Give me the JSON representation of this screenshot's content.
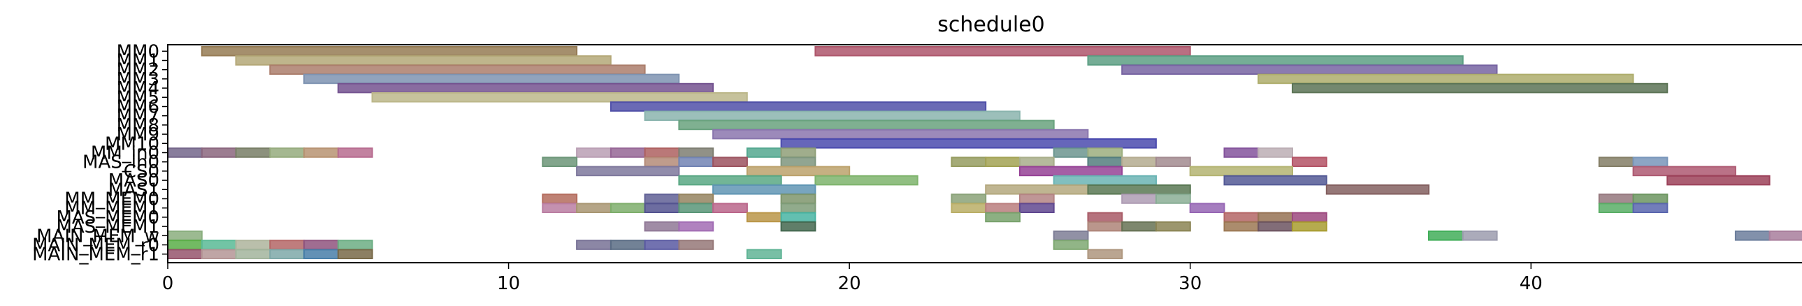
{
  "chart_data": {
    "type": "gantt",
    "title": "schedule0",
    "xlabel": "",
    "ylabel": "",
    "xlim": [
      0,
      48.3
    ],
    "x_ticks": [
      0,
      10,
      20,
      30,
      40
    ],
    "grid": false,
    "legend": "none",
    "rows": [
      "MM0",
      "MM1",
      "MM2",
      "MM3",
      "MM4",
      "MM5",
      "MM6",
      "MM7",
      "MM8",
      "MM9",
      "MM10",
      "MM_in0",
      "MAS_in0",
      "CS0",
      "MAS0",
      "MAS1",
      "MM_MEM0",
      "MM_MEM1",
      "MAS_MEM0",
      "MAS_MEM1",
      "MAIN_MEM_w",
      "MAIN_MEM_r0",
      "MAIN_MEM_r1"
    ],
    "y_labels": [
      "MM0",
      "MM1",
      "MM2",
      "MM3",
      "MM4",
      "MM5",
      "MM6",
      "MM7",
      "MM8",
      "MM9",
      "MM10",
      "MM_in0",
      "MAS_in0",
      "CS0",
      "MAS0",
      "MAS1",
      "MM_MEM0",
      "MM_MEM1",
      "MAS_MEM0",
      "MAS_MEM1",
      "MAIN_MEM_w",
      "MAIN_MEM_r0",
      "MAIN_MEM_r1"
    ],
    "tasks": [
      {
        "row": 0,
        "start": 1,
        "end": 12,
        "color": "#c8a470"
      },
      {
        "row": 0,
        "start": 19,
        "end": 30,
        "color": "#e8738f"
      },
      {
        "row": 1,
        "start": 2,
        "end": 13,
        "color": "#f0e0a0"
      },
      {
        "row": 1,
        "start": 27,
        "end": 38,
        "color": "#7bd4b0"
      },
      {
        "row": 2,
        "start": 3,
        "end": 14,
        "color": "#e4a890"
      },
      {
        "row": 2,
        "start": 28,
        "end": 39,
        "color": "#9f86d8"
      },
      {
        "row": 3,
        "start": 4,
        "end": 15,
        "color": "#a8c4ec"
      },
      {
        "row": 3,
        "start": 32,
        "end": 43,
        "color": "#e8e690"
      },
      {
        "row": 4,
        "start": 5,
        "end": 16,
        "color": "#9b6fc0"
      },
      {
        "row": 4,
        "start": 33,
        "end": 44,
        "color": "#7a9a72"
      },
      {
        "row": 5,
        "start": 6,
        "end": 17,
        "color": "#fbf4b8"
      },
      {
        "row": 6,
        "start": 13,
        "end": 24,
        "color": "#6b6be0"
      },
      {
        "row": 7,
        "start": 14,
        "end": 25,
        "color": "#b8f0e8"
      },
      {
        "row": 8,
        "start": 15,
        "end": 26,
        "color": "#8cd8a8"
      },
      {
        "row": 9,
        "start": 16,
        "end": 27,
        "color": "#b89ee8"
      },
      {
        "row": 10,
        "start": 18,
        "end": 29,
        "color": "#6464e8"
      },
      {
        "row": 11,
        "start": 0,
        "end": 1,
        "color": "#9a88b8"
      },
      {
        "row": 11,
        "start": 1,
        "end": 2,
        "color": "#b888a8"
      },
      {
        "row": 11,
        "start": 2,
        "end": 3,
        "color": "#a0a888"
      },
      {
        "row": 11,
        "start": 3,
        "end": 4,
        "color": "#c8e4a8"
      },
      {
        "row": 11,
        "start": 4,
        "end": 5,
        "color": "#f4c498"
      },
      {
        "row": 11,
        "start": 5,
        "end": 6,
        "color": "#f490c0"
      },
      {
        "row": 11,
        "start": 12,
        "end": 13,
        "color": "#f8d4f0"
      },
      {
        "row": 11,
        "start": 13,
        "end": 14,
        "color": "#c888c8"
      },
      {
        "row": 11,
        "start": 14,
        "end": 15,
        "color": "#e88080"
      },
      {
        "row": 11,
        "start": 15,
        "end": 16,
        "color": "#a8a898"
      },
      {
        "row": 11,
        "start": 17,
        "end": 18,
        "color": "#70e0c0"
      },
      {
        "row": 11,
        "start": 18,
        "end": 19,
        "color": "#c0d4a0"
      },
      {
        "row": 11,
        "start": 26,
        "end": 27,
        "color": "#90c8c0"
      },
      {
        "row": 11,
        "start": 27,
        "end": 28,
        "color": "#d0e8a8"
      },
      {
        "row": 11,
        "start": 31,
        "end": 32,
        "color": "#b070d0"
      },
      {
        "row": 11,
        "start": 32,
        "end": 33,
        "color": "#fbe8f0"
      },
      {
        "row": 12,
        "start": 11,
        "end": 12,
        "color": "#90c8a0"
      },
      {
        "row": 12,
        "start": 14,
        "end": 15,
        "color": "#f0b8a0"
      },
      {
        "row": 12,
        "start": 15,
        "end": 16,
        "color": "#98b0f0"
      },
      {
        "row": 12,
        "start": 16,
        "end": 17,
        "color": "#d07080"
      },
      {
        "row": 12,
        "start": 18,
        "end": 19,
        "color": "#a8c8a8"
      },
      {
        "row": 12,
        "start": 23,
        "end": 24,
        "color": "#c8d080"
      },
      {
        "row": 12,
        "start": 24,
        "end": 25,
        "color": "#d8d870"
      },
      {
        "row": 12,
        "start": 25,
        "end": 26,
        "color": "#e0e8b8"
      },
      {
        "row": 12,
        "start": 27,
        "end": 28,
        "color": "#70a8a8"
      },
      {
        "row": 12,
        "start": 28,
        "end": 29,
        "color": "#f0e4c0"
      },
      {
        "row": 12,
        "start": 29,
        "end": 30,
        "color": "#d8b8c0"
      },
      {
        "row": 12,
        "start": 33,
        "end": 34,
        "color": "#f07088"
      },
      {
        "row": 12,
        "start": 42,
        "end": 43,
        "color": "#b0a888"
      },
      {
        "row": 12,
        "start": 43,
        "end": 44,
        "color": "#a0c8f8"
      },
      {
        "row": 13,
        "start": 12,
        "end": 15,
        "color": "#a8a0d0"
      },
      {
        "row": 13,
        "start": 17,
        "end": 20,
        "color": "#fbd890"
      },
      {
        "row": 13,
        "start": 25,
        "end": 28,
        "color": "#c858c8"
      },
      {
        "row": 13,
        "start": 30,
        "end": 33,
        "color": "#f0f098"
      },
      {
        "row": 13,
        "start": 43,
        "end": 46,
        "color": "#e87898"
      },
      {
        "row": 14,
        "start": 15,
        "end": 18,
        "color": "#78e0b0"
      },
      {
        "row": 14,
        "start": 19,
        "end": 22,
        "color": "#a8f090"
      },
      {
        "row": 14,
        "start": 26,
        "end": 29,
        "color": "#8ef0f0"
      },
      {
        "row": 14,
        "start": 31,
        "end": 34,
        "color": "#7078c8"
      },
      {
        "row": 14,
        "start": 44,
        "end": 47,
        "color": "#d05878"
      },
      {
        "row": 15,
        "start": 16,
        "end": 19,
        "color": "#80c8f0"
      },
      {
        "row": 15,
        "start": 24,
        "end": 27,
        "color": "#f0e0a8"
      },
      {
        "row": 15,
        "start": 27,
        "end": 30,
        "color": "#78a070"
      },
      {
        "row": 15,
        "start": 34,
        "end": 37,
        "color": "#b08080"
      },
      {
        "row": 16,
        "start": 11,
        "end": 12,
        "color": "#f0907c"
      },
      {
        "row": 16,
        "start": 14,
        "end": 15,
        "color": "#8080c8"
      },
      {
        "row": 16,
        "start": 15,
        "end": 16,
        "color": "#c8b080"
      },
      {
        "row": 16,
        "start": 18,
        "end": 19,
        "color": "#a8c890"
      },
      {
        "row": 16,
        "start": 23,
        "end": 24,
        "color": "#b8d8a0"
      },
      {
        "row": 16,
        "start": 25,
        "end": 26,
        "color": "#f0b0b0"
      },
      {
        "row": 16,
        "start": 28,
        "end": 29,
        "color": "#e8d0f0"
      },
      {
        "row": 16,
        "start": 29,
        "end": 30,
        "color": "#b8e8c8"
      },
      {
        "row": 16,
        "start": 42,
        "end": 43,
        "color": "#c8a0a8"
      },
      {
        "row": 16,
        "start": 43,
        "end": 44,
        "color": "#90c880"
      },
      {
        "row": 17,
        "start": 11,
        "end": 12,
        "color": "#f8a8d8"
      },
      {
        "row": 17,
        "start": 12,
        "end": 13,
        "color": "#e0c898"
      },
      {
        "row": 17,
        "start": 13,
        "end": 14,
        "color": "#a8e890"
      },
      {
        "row": 17,
        "start": 14,
        "end": 15,
        "color": "#7070c0"
      },
      {
        "row": 17,
        "start": 15,
        "end": 16,
        "color": "#78c8a0"
      },
      {
        "row": 17,
        "start": 16,
        "end": 17,
        "color": "#f888b8"
      },
      {
        "row": 17,
        "start": 18,
        "end": 19,
        "color": "#a8d0a0"
      },
      {
        "row": 17,
        "start": 23,
        "end": 24,
        "color": "#f8e888"
      },
      {
        "row": 17,
        "start": 24,
        "end": 25,
        "color": "#f8a8a8"
      },
      {
        "row": 17,
        "start": 25,
        "end": 26,
        "color": "#8060c0"
      },
      {
        "row": 17,
        "start": 30,
        "end": 31,
        "color": "#c888f0"
      },
      {
        "row": 17,
        "start": 42,
        "end": 43,
        "color": "#78e888"
      },
      {
        "row": 17,
        "start": 43,
        "end": 44,
        "color": "#7888e8"
      },
      {
        "row": 18,
        "start": 17,
        "end": 18,
        "color": "#f8c860"
      },
      {
        "row": 18,
        "start": 18,
        "end": 19,
        "color": "#60f0d8"
      },
      {
        "row": 18,
        "start": 24,
        "end": 25,
        "color": "#a0d890"
      },
      {
        "row": 18,
        "start": 27,
        "end": 28,
        "color": "#e07888"
      },
      {
        "row": 18,
        "start": 31,
        "end": 32,
        "color": "#f08888"
      },
      {
        "row": 18,
        "start": 32,
        "end": 33,
        "color": "#c89870"
      },
      {
        "row": 18,
        "start": 33,
        "end": 34,
        "color": "#d060a8"
      },
      {
        "row": 19,
        "start": 14,
        "end": 15,
        "color": "#c0a0c8"
      },
      {
        "row": 19,
        "start": 15,
        "end": 16,
        "color": "#d890f0"
      },
      {
        "row": 19,
        "start": 18,
        "end": 19,
        "color": "#5a8a6a"
      },
      {
        "row": 19,
        "start": 27,
        "end": 28,
        "color": "#e8b0a0"
      },
      {
        "row": 19,
        "start": 28,
        "end": 29,
        "color": "#889870"
      },
      {
        "row": 19,
        "start": 29,
        "end": 30,
        "color": "#b8b070"
      },
      {
        "row": 19,
        "start": 31,
        "end": 32,
        "color": "#d0a070"
      },
      {
        "row": 19,
        "start": 32,
        "end": 33,
        "color": "#907080"
      },
      {
        "row": 19,
        "start": 33,
        "end": 34,
        "color": "#e0d040"
      },
      {
        "row": 20,
        "start": 0,
        "end": 1,
        "color": "#b8e8a8"
      },
      {
        "row": 20,
        "start": 26,
        "end": 27,
        "color": "#a8a8c8"
      },
      {
        "row": 20,
        "start": 37,
        "end": 38,
        "color": "#58e878"
      },
      {
        "row": 20,
        "start": 38,
        "end": 39,
        "color": "#d0d0e8"
      },
      {
        "row": 20,
        "start": 46,
        "end": 47,
        "color": "#90a8d0"
      },
      {
        "row": 20,
        "start": 47,
        "end": 48,
        "color": "#e0a8d0"
      },
      {
        "row": 21,
        "start": 0,
        "end": 1,
        "color": "#78e860"
      },
      {
        "row": 21,
        "start": 1,
        "end": 2,
        "color": "#78f8c8"
      },
      {
        "row": 21,
        "start": 2,
        "end": 3,
        "color": "#e8f0d0"
      },
      {
        "row": 21,
        "start": 3,
        "end": 4,
        "color": "#f08888"
      },
      {
        "row": 21,
        "start": 4,
        "end": 5,
        "color": "#c070a8"
      },
      {
        "row": 21,
        "start": 5,
        "end": 6,
        "color": "#90e8b0"
      },
      {
        "row": 21,
        "start": 12,
        "end": 13,
        "color": "#a098c8"
      },
      {
        "row": 21,
        "start": 13,
        "end": 14,
        "color": "#7890b0"
      },
      {
        "row": 21,
        "start": 14,
        "end": 15,
        "color": "#7878d8"
      },
      {
        "row": 21,
        "start": 15,
        "end": 16,
        "color": "#c8a0a0"
      },
      {
        "row": 21,
        "start": 26,
        "end": 27,
        "color": "#a8e098"
      },
      {
        "row": 22,
        "start": 0,
        "end": 1,
        "color": "#c87090"
      },
      {
        "row": 22,
        "start": 1,
        "end": 2,
        "color": "#f0c8c8"
      },
      {
        "row": 22,
        "start": 2,
        "end": 3,
        "color": "#d8f0d0"
      },
      {
        "row": 22,
        "start": 3,
        "end": 4,
        "color": "#a8e0e0"
      },
      {
        "row": 22,
        "start": 4,
        "end": 5,
        "color": "#60a8e0"
      },
      {
        "row": 22,
        "start": 5,
        "end": 6,
        "color": "#a08c60"
      },
      {
        "row": 22,
        "start": 17,
        "end": 18,
        "color": "#80f0c8"
      },
      {
        "row": 22,
        "start": 27,
        "end": 28,
        "color": "#e8c8a8"
      }
    ]
  }
}
